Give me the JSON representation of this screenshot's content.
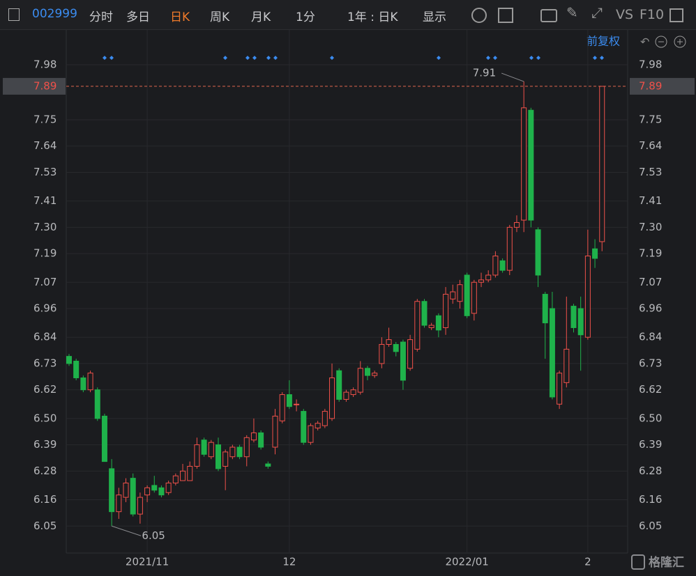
{
  "toolbar": {
    "code": "002999",
    "tabs": [
      "分时",
      "多日",
      "日K",
      "周K",
      "月K",
      "1分"
    ],
    "active_tab": 2,
    "range": "1年 : 日K",
    "display": "显示",
    "vs": "VS",
    "f10": "F10"
  },
  "adjust": "前复权",
  "watermark": "格隆汇",
  "chart_data": {
    "type": "candlestick",
    "up_color": "#f0514a",
    "down_color": "#1fb24b",
    "categories": [
      null,
      null,
      null,
      null,
      null,
      null,
      null,
      null,
      null,
      null,
      null,
      "2021/11",
      null,
      null,
      null,
      null,
      null,
      null,
      null,
      null,
      null,
      null,
      null,
      null,
      null,
      null,
      null,
      null,
      null,
      null,
      null,
      "12",
      null,
      null,
      null,
      null,
      null,
      null,
      null,
      null,
      null,
      null,
      null,
      null,
      null,
      null,
      null,
      null,
      null,
      null,
      null,
      null,
      null,
      null,
      null,
      null,
      "2022/01",
      null,
      null,
      null,
      null,
      null,
      null,
      null,
      null,
      null,
      null,
      null,
      null,
      null,
      null,
      null,
      null,
      "2",
      null,
      null
    ],
    "open": [
      6.76,
      6.74,
      6.67,
      6.62,
      6.62,
      6.51,
      6.29,
      6.11,
      6.17,
      6.25,
      6.1,
      6.18,
      6.22,
      6.21,
      6.19,
      6.23,
      6.24,
      6.24,
      6.3,
      6.41,
      6.34,
      6.39,
      6.3,
      6.34,
      6.38,
      6.34,
      6.41,
      6.44,
      6.31,
      6.38,
      6.49,
      6.6,
      6.56,
      6.53,
      6.4,
      6.46,
      6.47,
      6.5,
      6.7,
      6.58,
      6.6,
      6.61,
      6.71,
      6.68,
      6.73,
      6.81,
      6.81,
      6.82,
      6.71,
      6.79,
      6.99,
      6.88,
      6.93,
      6.88,
      7.0,
      6.99,
      7.1,
      6.94,
      7.07,
      7.08,
      7.1,
      7.16,
      7.12,
      7.3,
      7.33,
      7.79,
      7.29,
      7.02,
      6.96,
      6.56,
      6.65,
      6.97,
      6.96,
      6.84,
      7.21,
      7.24
    ],
    "high": [
      6.77,
      6.75,
      6.68,
      6.7,
      6.63,
      6.52,
      6.33,
      6.21,
      6.25,
      6.27,
      6.19,
      6.22,
      6.26,
      6.22,
      6.24,
      6.27,
      6.31,
      6.32,
      6.42,
      6.42,
      6.41,
      6.42,
      6.37,
      6.39,
      6.39,
      6.43,
      6.5,
      6.45,
      6.32,
      6.54,
      6.61,
      6.66,
      6.58,
      6.54,
      6.48,
      6.49,
      6.54,
      6.73,
      6.71,
      6.62,
      6.63,
      6.74,
      6.72,
      6.7,
      6.84,
      6.88,
      6.82,
      6.83,
      6.85,
      7.0,
      7.0,
      6.9,
      6.94,
      7.05,
      7.06,
      7.08,
      7.11,
      7.08,
      7.11,
      7.12,
      7.2,
      7.17,
      7.31,
      7.35,
      7.91,
      7.8,
      7.3,
      7.03,
      7.03,
      6.7,
      7.01,
      6.98,
      7.01,
      7.29,
      7.25,
      7.89
    ],
    "low": [
      6.72,
      6.66,
      6.61,
      6.61,
      6.49,
      6.32,
      6.05,
      6.08,
      6.15,
      6.09,
      6.06,
      6.15,
      6.19,
      6.17,
      6.18,
      6.22,
      6.24,
      6.24,
      6.29,
      6.34,
      6.33,
      6.28,
      6.2,
      6.33,
      6.33,
      6.3,
      6.4,
      6.37,
      6.29,
      6.35,
      6.48,
      6.54,
      6.53,
      6.39,
      6.39,
      6.45,
      6.46,
      6.49,
      6.57,
      6.57,
      6.59,
      6.6,
      6.66,
      6.67,
      6.71,
      6.8,
      6.76,
      6.62,
      6.7,
      6.78,
      6.88,
      6.87,
      6.84,
      6.85,
      6.98,
      6.96,
      6.92,
      6.91,
      7.05,
      7.07,
      7.09,
      7.11,
      7.1,
      7.28,
      7.28,
      7.3,
      7.05,
      6.75,
      6.58,
      6.54,
      6.63,
      6.86,
      6.7,
      6.83,
      7.13,
      7.2
    ],
    "close": [
      6.73,
      6.67,
      6.62,
      6.69,
      6.5,
      6.32,
      6.11,
      6.18,
      6.23,
      6.1,
      6.17,
      6.21,
      6.2,
      6.18,
      6.23,
      6.26,
      6.28,
      6.3,
      6.39,
      6.35,
      6.4,
      6.29,
      6.36,
      6.38,
      6.34,
      6.42,
      6.44,
      6.38,
      6.3,
      6.51,
      6.6,
      6.55,
      6.56,
      6.4,
      6.47,
      6.48,
      6.53,
      6.67,
      6.58,
      6.61,
      6.62,
      6.71,
      6.68,
      6.69,
      6.81,
      6.83,
      6.78,
      6.66,
      6.83,
      6.99,
      6.89,
      6.89,
      6.87,
      7.02,
      7.03,
      7.06,
      6.93,
      7.07,
      7.08,
      7.1,
      7.18,
      7.12,
      7.3,
      7.32,
      7.8,
      7.33,
      7.1,
      6.9,
      6.59,
      6.69,
      6.79,
      6.88,
      6.85,
      7.18,
      7.17,
      7.89
    ],
    "ylim": [
      5.94,
      8.12
    ],
    "yticks": [
      7.98,
      7.75,
      7.64,
      7.53,
      7.41,
      {
        "value": 7.3,
        "label": "7.30"
      },
      7.19,
      7.07,
      6.96,
      6.84,
      6.73,
      6.62,
      {
        "value": 6.5,
        "label": "6.50"
      },
      6.39,
      6.28,
      6.16,
      6.05
    ],
    "last_price": 7.89,
    "annotations": [
      {
        "value": 7.91
      },
      {
        "value": 6.05
      }
    ],
    "grid": true
  }
}
